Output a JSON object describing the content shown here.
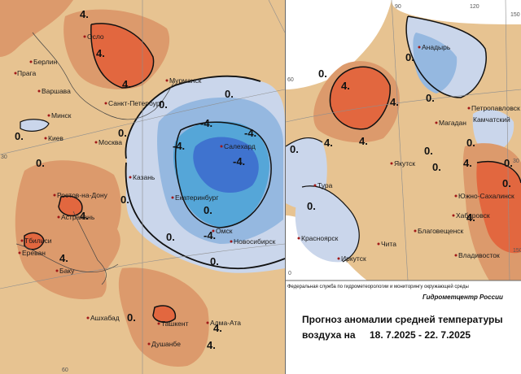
{
  "colors": {
    "warm_light": "#e7c391",
    "warm_mid": "#dc9a6c",
    "warm_strong": "#e2673f",
    "cold_light": "#cad6eb",
    "cold_mid": "#95b8e0",
    "cold_strong": "#55a6d8",
    "cold_deep": "#3f73cf",
    "land": "#efe0bd"
  },
  "left_map": {
    "cities": [
      "Осло",
      "Берлин",
      "Прага",
      "Варшава",
      "Санкт-Петербург",
      "Мурманск",
      "Минск",
      "Киев",
      "Москва",
      "Казань",
      "Салехард",
      "Екатеринбург",
      "Ростов-на-Дону",
      "Астрахань",
      "Тбилиси",
      "Ереван",
      "Баку",
      "Омск",
      "Новосибирск",
      "Ашхабад",
      "Ташкент",
      "Алма-Ата",
      "Душанбе"
    ],
    "isolines": [
      "4.",
      "4.",
      "4.",
      "0.",
      "0.",
      "0.",
      "0.",
      "-4.",
      "-4.",
      "-4.",
      "-4.",
      "0.",
      "0.",
      "0.",
      "0.",
      "4.",
      "0.",
      "4.",
      "-4.",
      "0.",
      "4.",
      "4."
    ],
    "frame_numbers": [
      "30",
      "60"
    ]
  },
  "right_map": {
    "cities": [
      "Анадырь",
      "Петропавловск",
      "Камчатский",
      "Магадан",
      "Якутск",
      "Тура",
      "Красноярск",
      "Иркутск",
      "Чита",
      "Благовещенск",
      "Южно-Сахалинск",
      "Хабаровск",
      "Владивосток"
    ],
    "isolines": [
      "0.",
      "4.",
      "0.",
      "4.",
      "0.",
      "4.",
      "0.",
      "4.",
      "0.",
      "0.",
      "0.",
      "0.",
      "4.",
      "0.",
      "4.",
      "0."
    ],
    "frame_numbers": [
      "90",
      "120",
      "60",
      "150",
      "30",
      "150",
      "0"
    ]
  },
  "footer": {
    "agency": "Федеральная служба по гидрометеорологии и мониторингу окружающей среды",
    "brand": "Гидрометцентр России",
    "title": "Прогноз аномалии средней температуры",
    "subtitle_prefix": "воздуха на",
    "period": "18. 7.2025 - 22. 7.2025"
  }
}
